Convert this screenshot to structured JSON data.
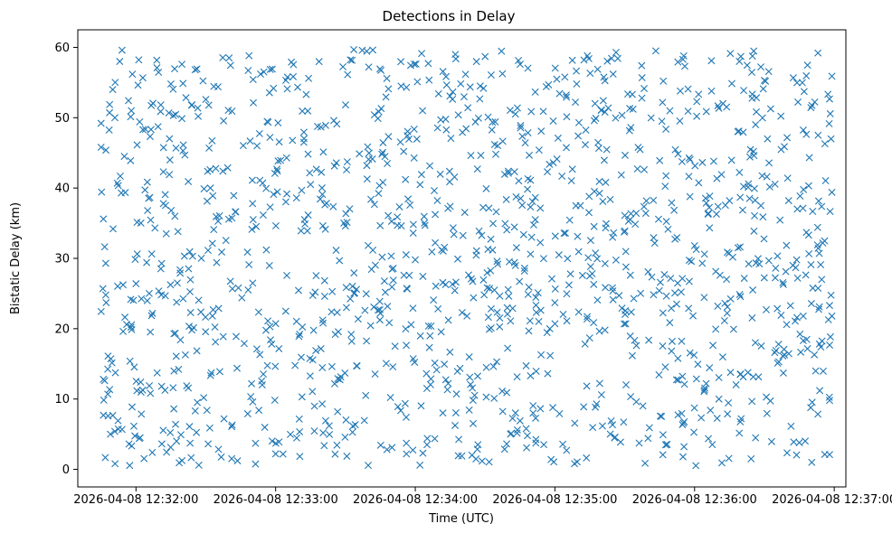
{
  "chart_data": {
    "type": "scatter",
    "title": "Detections in Delay",
    "xlabel": "Time (UTC)",
    "ylabel": "Bistatic Delay (km)",
    "marker": "x",
    "color": "#1f77b4",
    "x_range": [
      "2026-04-08 12:31:35",
      "2026-04-08 12:37:05"
    ],
    "ylim": [
      -2.5,
      62.5
    ],
    "x_ticks": [
      "2026-04-08 12:32:00",
      "2026-04-08 12:33:00",
      "2026-04-08 12:34:00",
      "2026-04-08 12:35:00",
      "2026-04-08 12:36:00",
      "2026-04-08 12:37:00"
    ],
    "y_ticks": [
      0,
      10,
      20,
      30,
      40,
      50,
      60
    ],
    "grid": false,
    "time_span": [
      "2026-04-08 12:31:45",
      "2026-04-08 12:36:59"
    ],
    "points": [
      [
        "2026-04-08 12:31:45",
        49.2
      ],
      [
        "2026-04-08 12:31:45",
        45.8
      ],
      [
        "2026-04-08 12:31:46",
        35.6
      ],
      [
        "2026-04-08 12:31:46",
        12.8
      ],
      [
        "2026-04-08 12:31:46",
        7.7
      ],
      [
        "2026-04-08 12:31:47",
        29.3
      ],
      [
        "2026-04-08 12:31:47",
        24.8
      ],
      [
        "2026-04-08 12:31:48",
        16.1
      ],
      [
        "2026-04-08 12:31:49",
        5.0
      ],
      [
        "2026-04-08 12:31:50",
        54.0
      ],
      [
        "2026-04-08 12:31:51",
        0.8
      ],
      [
        "2026-04-08 12:31:52",
        40.7
      ],
      [
        "2026-04-08 12:31:53",
        58.0
      ],
      [
        "2026-04-08 12:31:54",
        59.6
      ],
      [
        "2026-04-08 12:31:55",
        44.5
      ],
      [
        "2026-04-08 12:31:56",
        20.6
      ],
      [
        "2026-04-08 12:31:57",
        3.6
      ],
      [
        "2026-04-08 12:31:58",
        51.0
      ],
      [
        "2026-04-08 12:32:00",
        26.4
      ],
      [
        "2026-04-08 12:32:02",
        12.4
      ],
      [
        "2026-04-08 12:32:03",
        48.3
      ],
      [
        "2026-04-08 12:32:05",
        36.8
      ],
      [
        "2026-04-08 12:32:07",
        2.4
      ],
      [
        "2026-04-08 12:32:09",
        57.1
      ],
      [
        "2026-04-08 12:32:11",
        11.8
      ],
      [
        "2026-04-08 12:32:13",
        33.5
      ],
      [
        "2026-04-08 12:32:15",
        54.8
      ],
      [
        "2026-04-08 12:32:17",
        6.4
      ],
      [
        "2026-04-08 12:32:19",
        27.9
      ],
      [
        "2026-04-08 12:32:21",
        44.7
      ],
      [
        "2026-04-08 12:32:24",
        19.8
      ],
      [
        "2026-04-08 12:32:27",
        0.6
      ],
      [
        "2026-04-08 12:32:30",
        52.6
      ],
      [
        "2026-04-08 12:32:33",
        38.9
      ],
      [
        "2026-04-08 12:32:36",
        13.9
      ],
      [
        "2026-04-08 12:32:40",
        58.5
      ],
      [
        "2026-04-08 12:32:44",
        25.8
      ],
      [
        "2026-04-08 12:32:48",
        7.9
      ],
      [
        "2026-04-08 12:32:52",
        46.0
      ],
      [
        "2026-04-08 12:32:56",
        31.2
      ],
      [
        "2026-04-08 12:33:00",
        2.2
      ],
      [
        "2026-04-08 12:33:05",
        54.1
      ],
      [
        "2026-04-08 12:33:10",
        18.9
      ],
      [
        "2026-04-08 12:33:15",
        40.5
      ],
      [
        "2026-04-08 12:33:20",
        9.3
      ],
      [
        "2026-04-08 12:33:25",
        49.6
      ],
      [
        "2026-04-08 12:33:30",
        34.6
      ],
      [
        "2026-04-08 12:33:35",
        14.7
      ],
      [
        "2026-04-08 12:33:40",
        57.2
      ],
      [
        "2026-04-08 12:33:45",
        22.2
      ],
      [
        "2026-04-08 12:33:50",
        3.1
      ],
      [
        "2026-04-08 12:33:55",
        45.2
      ],
      [
        "2026-04-08 12:34:00",
        29.8
      ],
      [
        "2026-04-08 12:34:05",
        11.5
      ],
      [
        "2026-04-08 12:34:10",
        53.4
      ],
      [
        "2026-04-08 12:34:15",
        37.4
      ],
      [
        "2026-04-08 12:34:20",
        1.9
      ],
      [
        "2026-04-08 12:34:25",
        24.4
      ],
      [
        "2026-04-08 12:34:30",
        58.7
      ],
      [
        "2026-04-08 12:34:35",
        15.3
      ],
      [
        "2026-04-08 12:34:40",
        42.1
      ],
      [
        "2026-04-08 12:34:45",
        6.9
      ],
      [
        "2026-04-08 12:34:50",
        33.0
      ],
      [
        "2026-04-08 12:34:55",
        50.9
      ],
      [
        "2026-04-08 12:35:00",
        20.7
      ],
      [
        "2026-04-08 12:35:05",
        2.7
      ],
      [
        "2026-04-08 12:35:10",
        47.4
      ],
      [
        "2026-04-08 12:35:15",
        27.5
      ],
      [
        "2026-04-08 12:35:20",
        10.6
      ],
      [
        "2026-04-08 12:35:25",
        56.2
      ],
      [
        "2026-04-08 12:35:30",
        36.1
      ],
      [
        "2026-04-08 12:35:35",
        17.6
      ],
      [
        "2026-04-08 12:35:40",
        4.4
      ],
      [
        "2026-04-08 12:35:45",
        43.9
      ],
      [
        "2026-04-08 12:35:50",
        22.9
      ],
      [
        "2026-04-08 12:35:55",
        58.3
      ],
      [
        "2026-04-08 12:36:00",
        31.8
      ],
      [
        "2026-04-08 12:36:05",
        12.2
      ],
      [
        "2026-04-08 12:36:10",
        51.7
      ],
      [
        "2026-04-08 12:36:15",
        38.2
      ],
      [
        "2026-04-08 12:36:20",
        7.2
      ],
      [
        "2026-04-08 12:36:25",
        25.5
      ],
      [
        "2026-04-08 12:36:30",
        55.3
      ],
      [
        "2026-04-08 12:36:35",
        16.9
      ],
      [
        "2026-04-08 12:36:40",
        41.4
      ],
      [
        "2026-04-08 12:36:45",
        3.8
      ],
      [
        "2026-04-08 12:36:50",
        29.1
      ],
      [
        "2026-04-08 12:36:53",
        59.2
      ],
      [
        "2026-04-08 12:36:56",
        46.3
      ],
      [
        "2026-04-08 12:36:58",
        9.8
      ],
      [
        "2026-04-08 12:36:58",
        23.3
      ],
      [
        "2026-04-08 12:36:58",
        2.1
      ],
      [
        "2026-04-08 12:36:59",
        55.9
      ],
      [
        "2026-04-08 12:36:59",
        39.4
      ],
      [
        "2026-04-08 12:36:59",
        21.8
      ]
    ]
  }
}
